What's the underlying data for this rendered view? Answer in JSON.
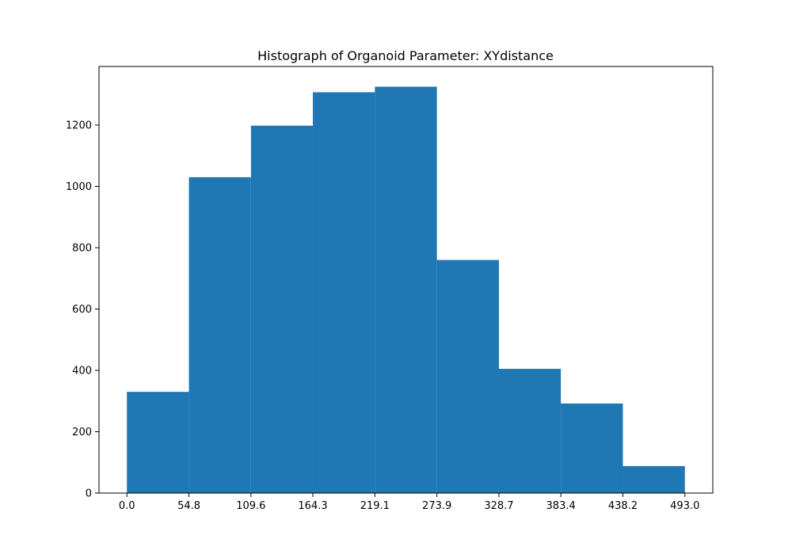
{
  "chart_data": {
    "type": "bar",
    "title": "Histograph of Organoid Parameter: XYdistance",
    "xlabel": "",
    "ylabel": "",
    "bin_edges": [
      0.0,
      54.8,
      109.6,
      164.3,
      219.1,
      273.9,
      328.7,
      383.4,
      438.2,
      493.0
    ],
    "counts": [
      330,
      1030,
      1198,
      1307,
      1325,
      760,
      405,
      292,
      88
    ],
    "x_ticks": [
      "0.0",
      "54.8",
      "109.6",
      "164.3",
      "219.1",
      "273.9",
      "328.7",
      "383.4",
      "438.2",
      "493.0"
    ],
    "y_ticks": [
      0,
      200,
      400,
      600,
      800,
      1000,
      1200
    ],
    "xlim": [
      -24.65,
      517.65
    ],
    "ylim": [
      0,
      1391
    ],
    "grid": false,
    "bar_color": "#1f77b4"
  }
}
